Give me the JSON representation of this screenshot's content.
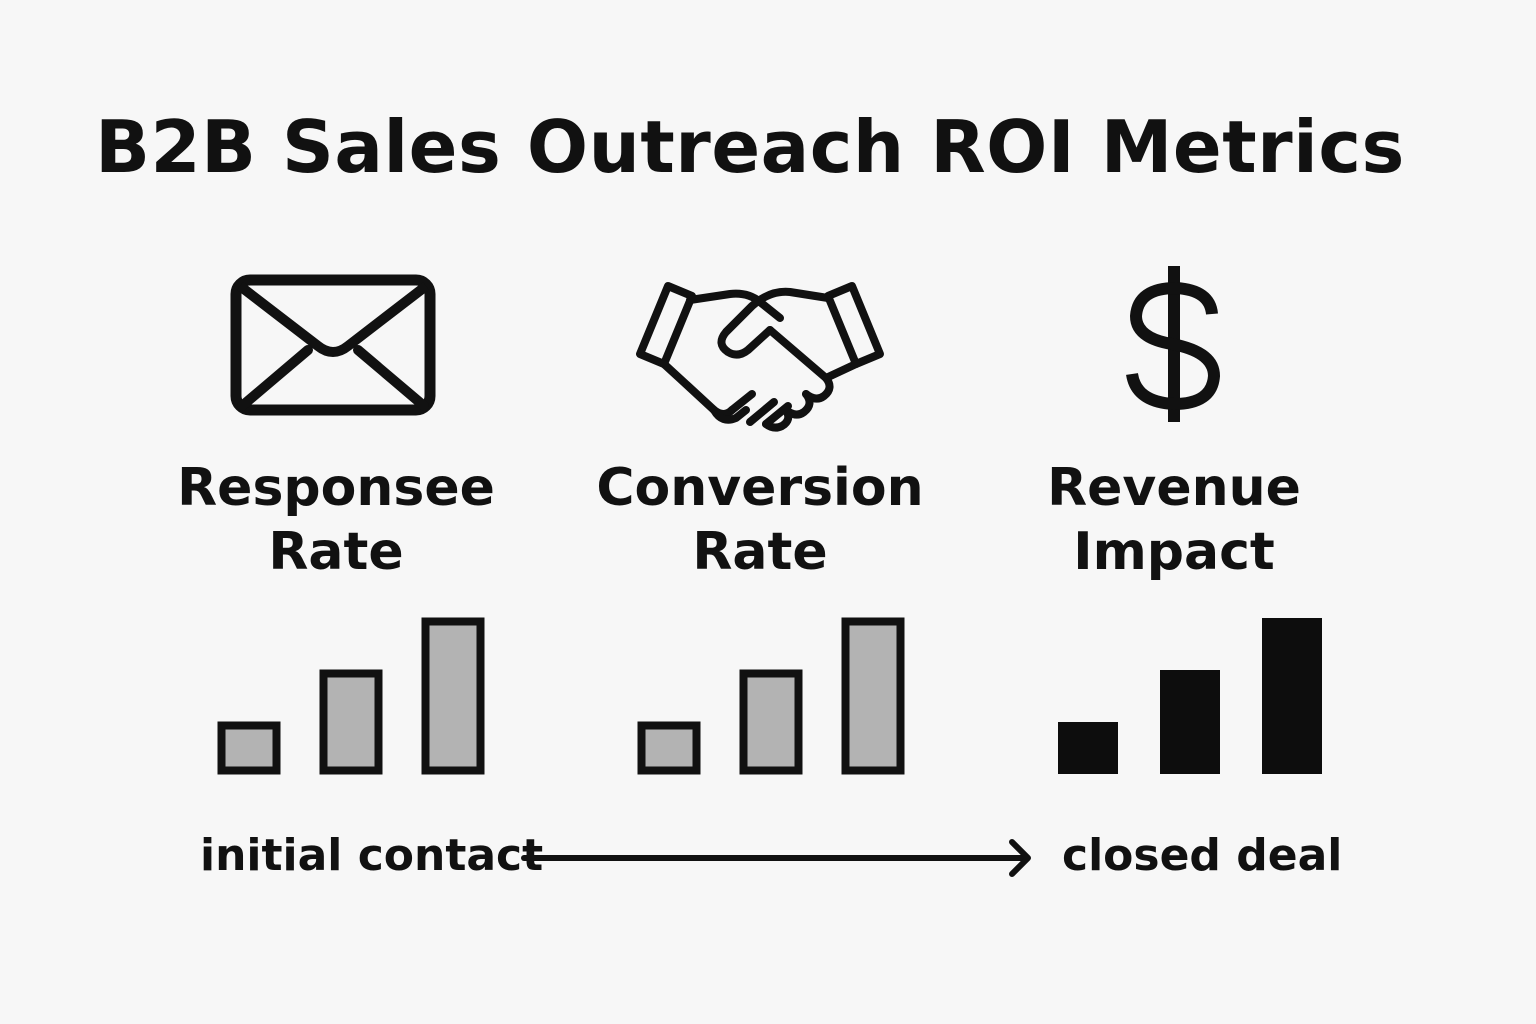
{
  "title": "B2B Sales Outreach ROI Metrics",
  "metrics": [
    {
      "icon": "envelope-icon",
      "label_line1": "Responsee",
      "label_line2": "Rate",
      "relative_values": [
        1,
        2,
        3
      ],
      "style": "outlined-gray"
    },
    {
      "icon": "handshake-icon",
      "label_line1": "Conversion",
      "label_line2": "Rate",
      "relative_values": [
        1,
        2,
        3
      ],
      "style": "outlined-gray"
    },
    {
      "icon": "dollar-icon",
      "label_line1": "Revenue",
      "label_line2": "Impact",
      "relative_values": [
        1,
        2,
        3
      ],
      "style": "solid-black"
    }
  ],
  "flow": {
    "start_label": "initial contact",
    "end_label": "closed deal"
  },
  "colors": {
    "background": "#f7f7f7",
    "ink": "#111111",
    "bar_fill_gray": "#b3b3b3",
    "bar_fill_black": "#0d0d0d"
  }
}
